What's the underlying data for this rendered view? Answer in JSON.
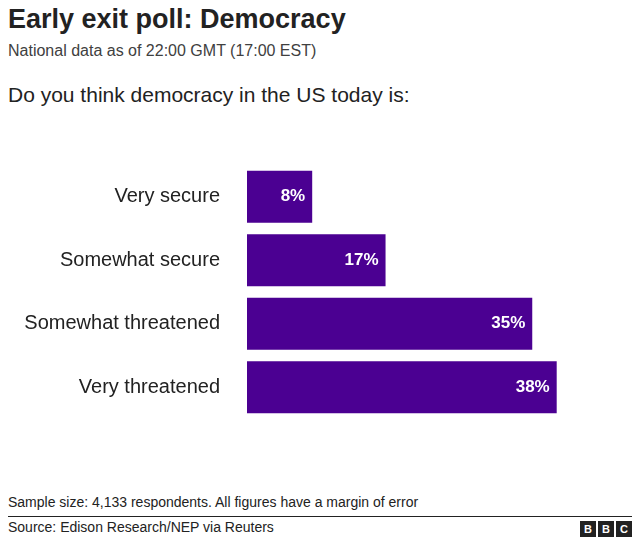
{
  "chart_data": {
    "type": "bar",
    "orientation": "horizontal",
    "title": "Early exit poll: Democracy",
    "subtitle": "National data as of 22:00 GMT (17:00 EST)",
    "question": "Do you think democracy in the US today is:",
    "note": "Sample size: 4,133 respondents. All figures have a margin of error",
    "source": "Source: Edison Research/NEP via Reuters",
    "logo": "BBC",
    "categories": [
      "Very secure",
      "Somewhat secure",
      "Somewhat threatened",
      "Very threatened"
    ],
    "values": [
      8,
      17,
      35,
      38
    ],
    "value_labels": [
      "8%",
      "17%",
      "35%",
      "38%"
    ],
    "color": "#4b0092",
    "data_labels": true,
    "grid": false,
    "tick_labels": "y"
  }
}
